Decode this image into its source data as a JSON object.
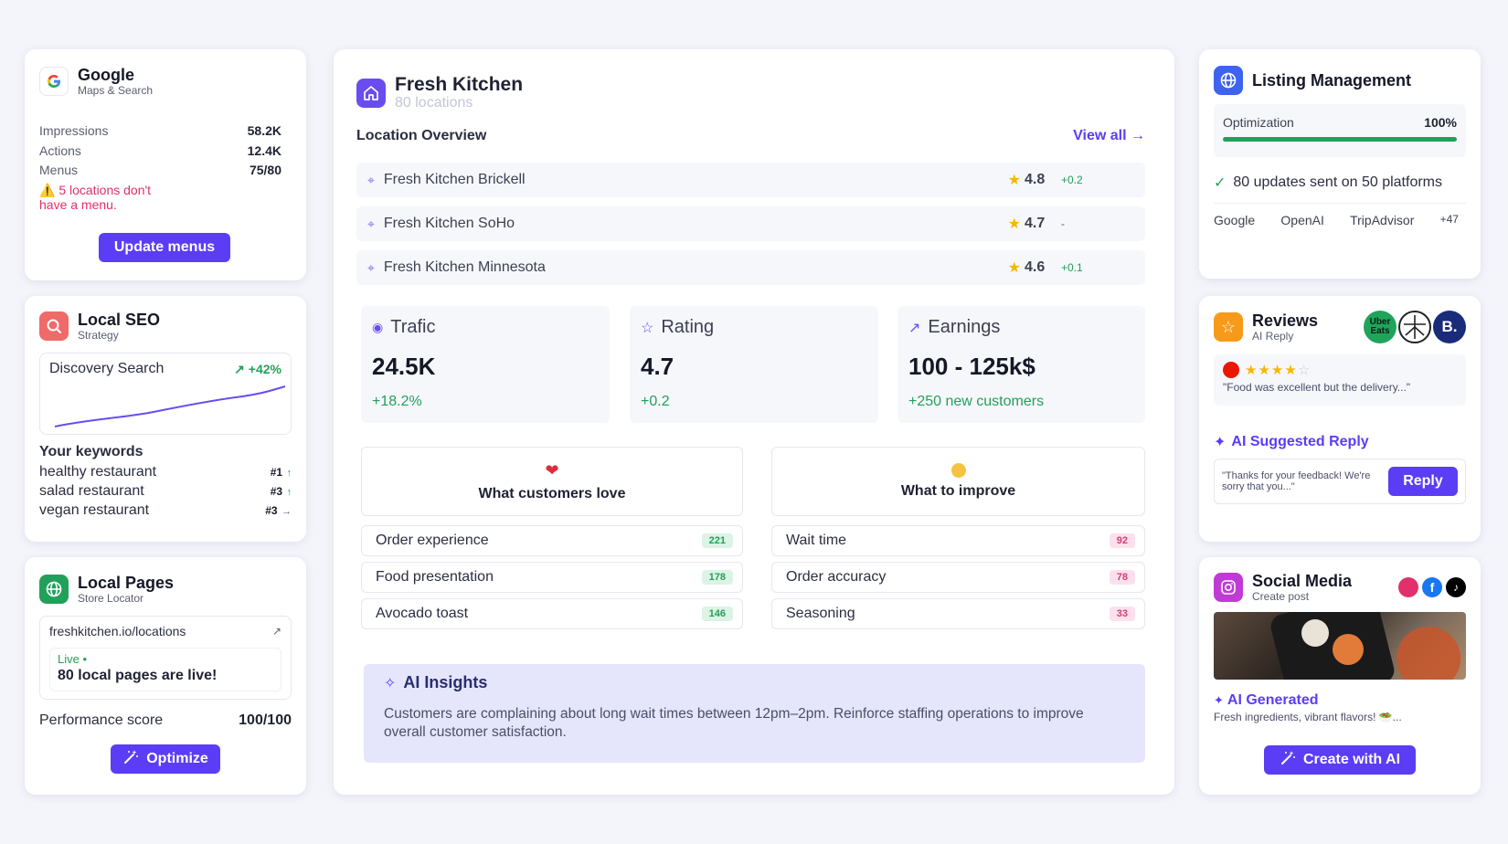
{
  "google": {
    "title": "Google",
    "subtitle": "Maps & Search",
    "stats": [
      {
        "label": "Impressions",
        "value": "58.2K"
      },
      {
        "label": "Actions",
        "value": "12.4K"
      },
      {
        "label": "Menus",
        "value": "75/80"
      }
    ],
    "warning": "5 locations don't have a menu.",
    "button": "Update menus"
  },
  "seo": {
    "title": "Local SEO",
    "subtitle": "Strategy",
    "chart_label": "Discovery Search",
    "chart_delta": "+42%",
    "keywords_title": "Your keywords",
    "keywords": [
      {
        "name": "healthy restaurant",
        "rank": "#1",
        "trend": "↑"
      },
      {
        "name": "salad restaurant",
        "rank": "#3",
        "trend": "↑"
      },
      {
        "name": "vegan restaurant",
        "rank": "#3",
        "trend": "→"
      }
    ]
  },
  "pages": {
    "title": "Local Pages",
    "subtitle": "Store Locator",
    "url": "freshkitchen.io/locations",
    "live_label": "Live",
    "live_text": "80 local pages are live!",
    "perf_label": "Performance score",
    "perf_value": "100/100",
    "button": "Optimize"
  },
  "main": {
    "title": "Fresh Kitchen",
    "subtitle": "80 locations",
    "overview_label": "Location Overview",
    "view_all": "View all →",
    "locations": [
      {
        "name": "Fresh Kitchen Brickell",
        "rating": "4.8",
        "delta": "+0.2"
      },
      {
        "name": "Fresh Kitchen SoHo",
        "rating": "4.7",
        "delta": "-"
      },
      {
        "name": "Fresh Kitchen Minnesota",
        "rating": "4.6",
        "delta": "+0.1"
      }
    ],
    "stats": [
      {
        "label": "Trafic",
        "value": "24.5K",
        "delta": "+18.2%"
      },
      {
        "label": "Rating",
        "value": "4.7",
        "delta": "+0.2"
      },
      {
        "label": "Earnings",
        "value": "100 - 125k$",
        "delta": "+250 new customers"
      }
    ],
    "love_title": "What customers love",
    "love_items": [
      {
        "name": "Order experience",
        "count": "221"
      },
      {
        "name": "Food presentation",
        "count": "178"
      },
      {
        "name": "Avocado toast",
        "count": "146"
      }
    ],
    "improve_title": "What to improve",
    "improve_items": [
      {
        "name": "Wait time",
        "count": "92"
      },
      {
        "name": "Order accuracy",
        "count": "78"
      },
      {
        "name": "Seasoning",
        "count": "33"
      }
    ],
    "insights_title": "AI Insights",
    "insights_text": "Customers are complaining about long wait times between 12pm–2pm. Reinforce staffing operations to improve overall customer satisfaction."
  },
  "listing": {
    "title": "Listing Management",
    "optimization_label": "Optimization",
    "optimization_value": "100%",
    "optimization_fraction": 1.0,
    "updates_text": "80 updates sent on 50 platforms",
    "platforms": [
      "Google",
      "OpenAI",
      "TripAdvisor",
      "+47"
    ]
  },
  "reviews": {
    "title": "Reviews",
    "subtitle": "AI Reply",
    "badge_uber": "Uber Eats",
    "badge_b": "B.",
    "stars": 4,
    "review_text": "\"Food was excellent but the delivery...\"",
    "suggested_title": "AI Suggested Reply",
    "suggested_text": "\"Thanks for your feedback! We're sorry that you...\"",
    "reply_button": "Reply"
  },
  "social": {
    "title": "Social Media",
    "subtitle": "Create post",
    "ai_generated": "AI Generated",
    "caption": "Fresh ingredients, vibrant flavors! 🥗...",
    "button": "Create with AI"
  }
}
